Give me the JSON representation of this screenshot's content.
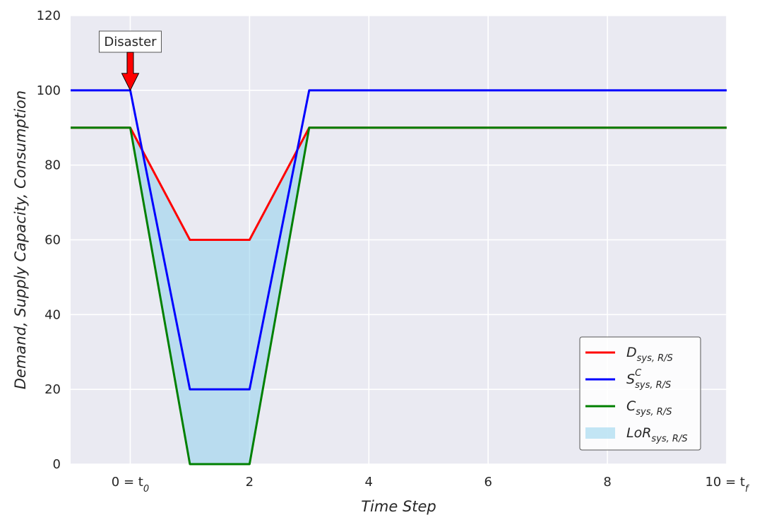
{
  "chart_data": {
    "type": "line",
    "xlabel": "Time Step",
    "ylabel": "Demand,  Supply Capacity,  Consumption",
    "xlim": [
      -1,
      10
    ],
    "ylim": [
      0,
      120
    ],
    "xticks": [
      {
        "value": 0,
        "main": "0 = t",
        "sub": "0"
      },
      {
        "value": 2,
        "main": "2",
        "sub": ""
      },
      {
        "value": 4,
        "main": "4",
        "sub": ""
      },
      {
        "value": 6,
        "main": "6",
        "sub": ""
      },
      {
        "value": 8,
        "main": "8",
        "sub": ""
      },
      {
        "value": 10,
        "main": "10 = t",
        "sub": "f"
      }
    ],
    "yticks": [
      0,
      20,
      40,
      60,
      80,
      100,
      120
    ],
    "grid": true,
    "series": [
      {
        "name": "D",
        "sub": "sys, R/S",
        "sup": "",
        "color": "#ff0000",
        "x": [
          -1,
          0,
          1,
          2,
          3,
          10
        ],
        "y": [
          90,
          90,
          60,
          60,
          90,
          90
        ]
      },
      {
        "name": "S",
        "sub": "sys, R/S",
        "sup": "C",
        "color": "#0000ff",
        "x": [
          -1,
          0,
          1,
          2,
          3,
          10
        ],
        "y": [
          100,
          100,
          20,
          20,
          100,
          100
        ]
      },
      {
        "name": "C",
        "sub": "sys, R/S",
        "sup": "",
        "color": "#008000",
        "x": [
          -1,
          0,
          1,
          2,
          3,
          10
        ],
        "y": [
          90,
          90,
          0,
          0,
          90,
          90
        ]
      }
    ],
    "fill": {
      "name": "LoR",
      "sub": "sys, R/S",
      "color": "#87ceeb",
      "x": [
        0,
        1,
        2,
        3
      ],
      "upper": [
        90,
        60,
        60,
        90
      ],
      "lower": [
        90,
        0,
        0,
        90
      ]
    },
    "legend_position": "bottom-right",
    "annotation": {
      "text": "Disaster",
      "x": 0,
      "y": 100,
      "arrow_color": "#ff0000"
    }
  }
}
